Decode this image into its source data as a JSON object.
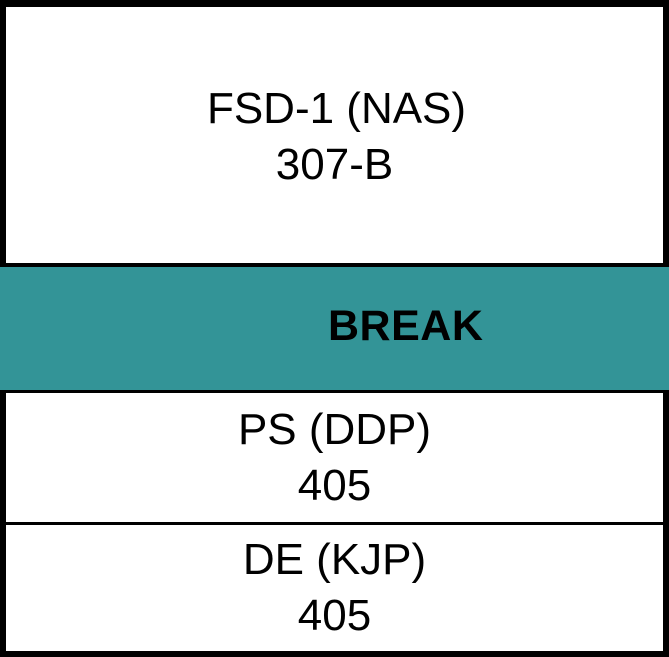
{
  "sessions": [
    {
      "line1": "FSD-1 (NAS)",
      "line2": "307-B"
    },
    {
      "line1": "PS (DDP)",
      "line2": "405"
    },
    {
      "line1": "DE (KJP)",
      "line2": "405"
    }
  ],
  "break": {
    "label": "BREAK",
    "color": "#339497"
  }
}
